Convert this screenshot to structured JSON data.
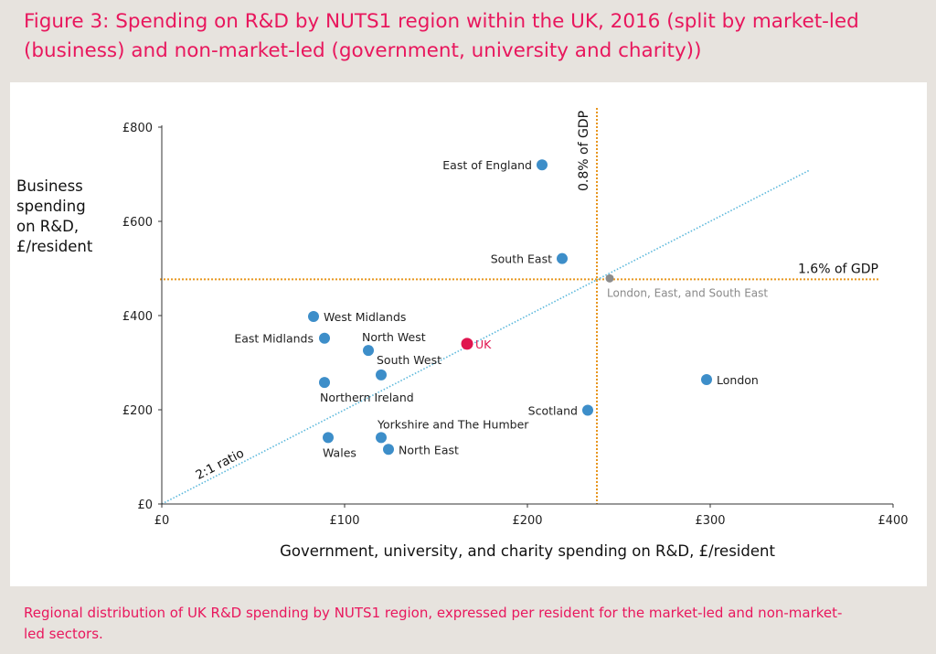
{
  "figure": {
    "title": "Figure 3: Spending on R&D by NUTS1 region within the UK, 2016 (split by market-led (business) and non-market-led (government, university and charity))",
    "caption": "Regional distribution of UK R&D spending by NUTS1 region, expressed per resident for the market-led and non-market-led sectors."
  },
  "colors": {
    "title": "#e8175d",
    "point": "#3d8ec9",
    "uk_point": "#e0144f",
    "threshold_lines": "#e8961e",
    "ratio_line": "#5bb8dc",
    "threshold_point": "#8c8c8c",
    "axis": "#333333"
  },
  "chart_data": {
    "type": "scatter",
    "xlabel": "Government, university, and charity spending on R&D, £/resident",
    "ylabel_lines": [
      "Business",
      "spending",
      "on R&D,",
      "£/resident"
    ],
    "xlim": [
      0,
      400
    ],
    "ylim": [
      0,
      800
    ],
    "x_ticks": [
      0,
      100,
      200,
      300,
      400
    ],
    "x_tick_labels": [
      "£0",
      "£100",
      "£200",
      "£300",
      "£400"
    ],
    "y_ticks": [
      0,
      200,
      400,
      600,
      800
    ],
    "y_tick_labels": [
      "£0",
      "£200",
      "£400",
      "£600",
      "£800"
    ],
    "grid": false,
    "points": [
      {
        "label": "East of England",
        "x": 208,
        "y": 720
      },
      {
        "label": "South East",
        "x": 219,
        "y": 521
      },
      {
        "label": "West Midlands",
        "x": 83,
        "y": 398
      },
      {
        "label": "East Midlands",
        "x": 89,
        "y": 352
      },
      {
        "label": "North West",
        "x": 113,
        "y": 326
      },
      {
        "label": "UK",
        "x": 167,
        "y": 340,
        "highlight": true
      },
      {
        "label": "South West",
        "x": 120,
        "y": 274
      },
      {
        "label": "Northern Ireland",
        "x": 89,
        "y": 258
      },
      {
        "label": "London",
        "x": 298,
        "y": 264
      },
      {
        "label": "Scotland",
        "x": 233,
        "y": 199
      },
      {
        "label": "Yorkshire and The Humber",
        "x": 120,
        "y": 141
      },
      {
        "label": "Wales",
        "x": 91,
        "y": 141
      },
      {
        "label": "North East",
        "x": 124,
        "y": 116
      }
    ],
    "reference_lines": [
      {
        "label": "0.8% of GDP",
        "orientation": "vertical",
        "x": 238
      },
      {
        "label": "1.6% of GDP",
        "orientation": "horizontal",
        "y": 477
      }
    ],
    "ratio_line": {
      "label": "2:1 ratio",
      "x": [
        0,
        354
      ],
      "y": [
        0,
        708
      ]
    },
    "threshold_point": {
      "label": "London, East, and South East",
      "x": 245,
      "y": 479
    }
  }
}
